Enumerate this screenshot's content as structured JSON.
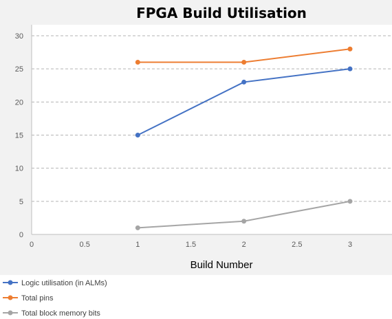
{
  "chart_data": {
    "type": "scatter",
    "title": "FPGA Build Utilisation",
    "xlabel": "Build Number",
    "ylabel": "",
    "xlim": [
      0,
      3.5
    ],
    "ylim": [
      0,
      30
    ],
    "x_ticks": [
      0,
      0.5,
      1,
      1.5,
      2,
      2.5,
      3
    ],
    "x_tick_labels": [
      "0",
      "0.5",
      "1",
      "1.5",
      "2",
      "2.5",
      "3"
    ],
    "y_ticks": [
      0,
      5,
      10,
      15,
      20,
      25,
      30
    ],
    "y_tick_labels": [
      "0",
      "5",
      "10",
      "15",
      "20",
      "25",
      "30"
    ],
    "grid": {
      "horizontal": true,
      "style": "dashed",
      "color": "#b3b3b3"
    },
    "legend_position": "bottom-left",
    "series": [
      {
        "name": "Logic utilisation (in ALMs)",
        "color": "#4472c4",
        "x": [
          1,
          2,
          3
        ],
        "y": [
          15,
          23,
          25
        ]
      },
      {
        "name": "Total pins",
        "color": "#ed7d31",
        "x": [
          1,
          2,
          3
        ],
        "y": [
          26,
          26,
          28
        ]
      },
      {
        "name": "Total block memory bits",
        "color": "#a5a5a5",
        "x": [
          1,
          2,
          3
        ],
        "y": [
          1,
          2,
          5
        ]
      }
    ]
  }
}
